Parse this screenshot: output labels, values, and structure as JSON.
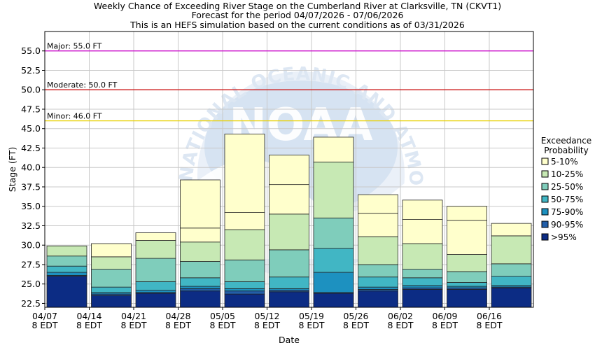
{
  "chart_data": {
    "type": "bar",
    "stacked": true,
    "title": [
      "Weekly Chance of Exceeding River Stage on the Cumberland River at Clarksville, TN (CKVT1)",
      "Forecast for the period 04/07/2026 - 07/06/2026",
      "This is an HEFS simulation based on the current conditions as of 03/31/2026"
    ],
    "xlabel": "Date",
    "ylabel": "Stage (FT)",
    "ylim": [
      22.0,
      57.5
    ],
    "yticks": [
      22.5,
      25.0,
      27.5,
      30.0,
      32.5,
      35.0,
      37.5,
      40.0,
      42.5,
      45.0,
      47.5,
      50.0,
      52.5,
      55.0
    ],
    "ytick_labels": [
      "22.5",
      "25.0",
      "27.5",
      "30.0",
      "32.5",
      "35.0",
      "37.5",
      "40.0",
      "42.5",
      "45.0",
      "47.5",
      "50.0",
      "52.5",
      "55.0"
    ],
    "xtick_labels": [
      {
        "date": "04/07",
        "tz": "8 EDT"
      },
      {
        "date": "04/14",
        "tz": "8 EDT"
      },
      {
        "date": "04/21",
        "tz": "8 EDT"
      },
      {
        "date": "04/28",
        "tz": "8 EDT"
      },
      {
        "date": "05/05",
        "tz": "8 EDT"
      },
      {
        "date": "05/12",
        "tz": "8 EDT"
      },
      {
        "date": "05/19",
        "tz": "8 EDT"
      },
      {
        "date": "05/26",
        "tz": "8 EDT"
      },
      {
        "date": "06/02",
        "tz": "8 EDT"
      },
      {
        "date": "06/09",
        "tz": "8 EDT"
      },
      {
        "date": "06/16",
        "tz": "8 EDT"
      }
    ],
    "grid": true,
    "legend_title": [
      "Exceedance",
      "Probability"
    ],
    "legend_placement": "right",
    "series": [
      {
        "name": "5-10%",
        "color": "#ffffcc"
      },
      {
        "name": "10-25%",
        "color": "#c7e9b4"
      },
      {
        "name": "25-50%",
        "color": "#7fcdbb"
      },
      {
        "name": "50-75%",
        "color": "#41b6c4"
      },
      {
        "name": "75-90%",
        "color": "#1d91c0"
      },
      {
        "name": "90-95%",
        "color": "#225ea8"
      },
      {
        "name": ">95%",
        "color": "#0c2c84"
      }
    ],
    "bars": [
      {
        "week": "04/07",
        "levels": [
          26.0,
          26.1,
          26.5,
          27.3,
          28.6,
          29.9
        ]
      },
      {
        "week": "04/14",
        "levels": [
          23.5,
          23.7,
          23.9,
          24.6,
          26.9,
          28.5,
          30.2
        ]
      },
      {
        "week": "04/21",
        "levels": [
          23.8,
          23.9,
          24.2,
          25.3,
          28.3,
          30.6,
          31.6
        ]
      },
      {
        "week": "04/28",
        "levels": [
          24.1,
          24.4,
          24.7,
          25.8,
          27.9,
          30.4,
          32.2,
          38.4
        ]
      },
      {
        "week": "05/05",
        "levels": [
          23.7,
          24.1,
          24.4,
          25.3,
          28.1,
          32.0,
          34.2,
          44.3
        ]
      },
      {
        "week": "05/12",
        "levels": [
          24.0,
          24.2,
          24.4,
          25.9,
          29.4,
          34.0,
          37.8,
          41.6
        ]
      },
      {
        "week": "05/19",
        "levels": [
          23.8,
          23.9,
          26.5,
          29.6,
          33.5,
          40.7,
          43.9
        ]
      },
      {
        "week": "05/26",
        "levels": [
          24.1,
          24.3,
          24.6,
          25.9,
          27.5,
          31.1,
          34.1,
          36.5
        ]
      },
      {
        "week": "06/02",
        "levels": [
          24.3,
          24.5,
          24.8,
          25.8,
          26.9,
          30.2,
          33.3,
          35.8
        ]
      },
      {
        "week": "06/09",
        "levels": [
          24.3,
          24.5,
          24.7,
          25.2,
          26.6,
          28.8,
          33.2,
          35.0
        ]
      },
      {
        "week": "06/16",
        "levels": [
          24.5,
          24.6,
          24.8,
          26.0,
          27.6,
          31.2,
          32.8
        ]
      }
    ],
    "thresholds": [
      {
        "label": "Major: 55.0 FT",
        "value": 55.0,
        "color": "#cc00cc"
      },
      {
        "label": "Moderate: 50.0 FT",
        "value": 50.0,
        "color": "#cc0000"
      },
      {
        "label": "Minor: 46.0 FT",
        "value": 46.0,
        "color": "#e8d000"
      }
    ]
  },
  "watermark": {
    "text": "NATIONAL OCEANIC AND ATMOSPHERIC ADMINISTRATION",
    "logo_text": "NOAA",
    "color": "#dde7f3"
  }
}
